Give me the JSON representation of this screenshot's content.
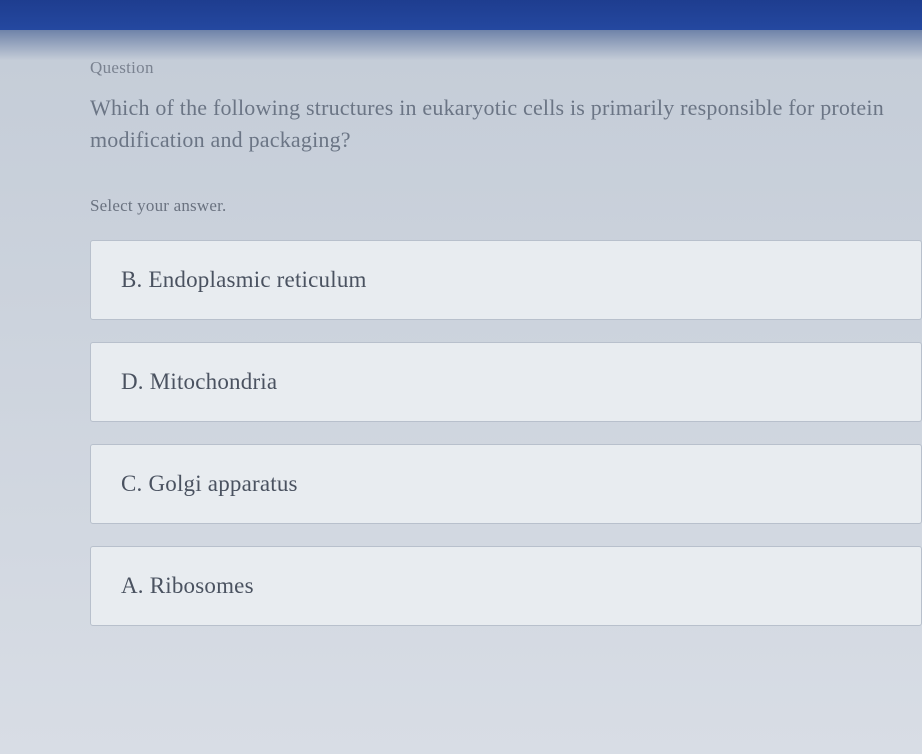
{
  "question": {
    "label": "Question",
    "text": "Which of the following structures in eukaryotic cells is primarily responsible for protein modification and packaging?",
    "select_prompt": "Select your answer."
  },
  "answers": {
    "option_0": "B. Endoplasmic reticulum",
    "option_1": "D. Mitochondria",
    "option_2": "C. Golgi apparatus",
    "option_3": "A. Ribosomes"
  },
  "colors": {
    "top_bar": "#1e3d8f",
    "background": "#d8dde5",
    "option_bg": "#e8ecf0",
    "option_border": "#b8c0cc",
    "text_muted": "#7a8290",
    "text_question": "#6b7585",
    "text_option": "#4a5260"
  }
}
